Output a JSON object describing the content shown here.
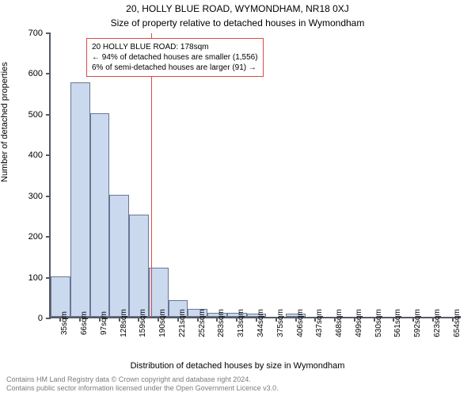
{
  "header": {
    "title": "20, HOLLY BLUE ROAD, WYMONDHAM, NR18 0XJ",
    "subtitle": "Size of property relative to detached houses in Wymondham"
  },
  "chart": {
    "type": "histogram",
    "ylabel": "Number of detached properties",
    "xlabel": "Distribution of detached houses by size in Wymondham",
    "ylim": [
      0,
      700
    ],
    "ytick_step": 100,
    "xticks": [
      "35sqm",
      "66sqm",
      "97sqm",
      "128sqm",
      "159sqm",
      "190sqm",
      "221sqm",
      "252sqm",
      "283sqm",
      "313sqm",
      "344sqm",
      "375sqm",
      "406sqm",
      "437sqm",
      "468sqm",
      "499sqm",
      "530sqm",
      "561sqm",
      "592sqm",
      "623sqm",
      "654sqm"
    ],
    "bar_values": [
      100,
      575,
      500,
      300,
      250,
      120,
      40,
      20,
      10,
      10,
      8,
      0,
      8,
      0,
      0,
      0,
      0,
      0,
      0,
      0,
      0
    ],
    "bar_fill": "#cbd9ef",
    "bar_stroke": "#6a7693",
    "axis_color": "#555a64",
    "refline": {
      "x_value": "178",
      "color": "#d94b47"
    },
    "annotation": {
      "border_color": "#d94b47",
      "bg": "#ffffff",
      "lines": [
        "20 HOLLY BLUE ROAD: 178sqm",
        "← 94% of detached houses are smaller (1,556)",
        "6% of semi-detached houses are larger (91) →"
      ]
    }
  },
  "footer": {
    "line1": "Contains HM Land Registry data © Crown copyright and database right 2024.",
    "line2": "Contains public sector information licensed under the Open Government Licence v3.0."
  }
}
